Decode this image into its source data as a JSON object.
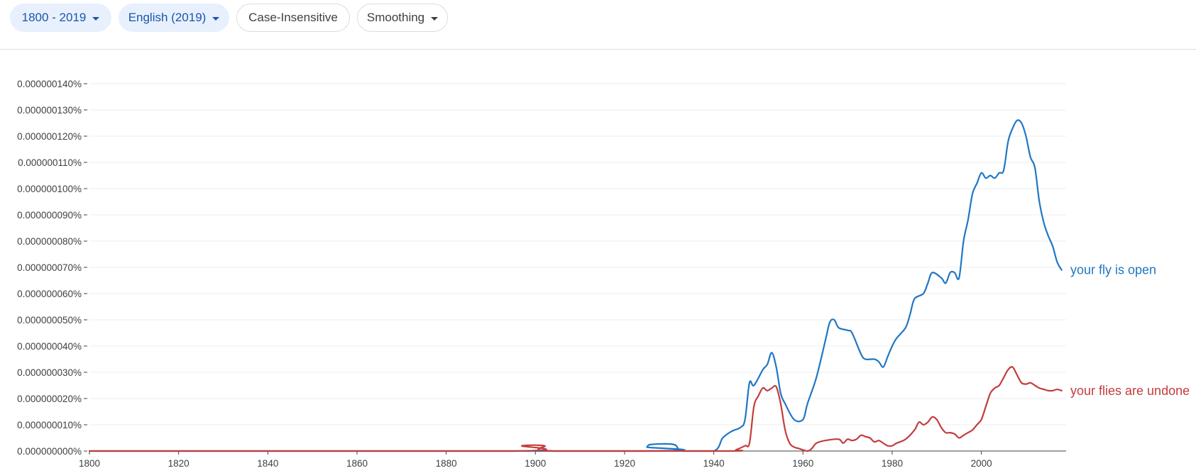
{
  "toolbar": {
    "range_label": "1800 - 2019",
    "corpus_label": "English (2019)",
    "case_label": "Case-Insensitive",
    "smoothing_label": "Smoothing"
  },
  "colors": {
    "chip_fill": "#e8f0fe",
    "chip_text": "#1a56a8",
    "series_blue": "#1f77c4",
    "series_red": "#c43c3c",
    "grid": "#eeeeee",
    "axis": "#3c4043"
  },
  "chart_data": {
    "type": "line",
    "title": "",
    "xlabel": "",
    "ylabel": "",
    "xlim": [
      1800,
      2019
    ],
    "ylim": [
      0,
      1.4e-07
    ],
    "grid": true,
    "legend": "inline-right",
    "x_ticks": [
      "1800",
      "1820",
      "1840",
      "1860",
      "1880",
      "1900",
      "1920",
      "1940",
      "1960",
      "1980",
      "2000"
    ],
    "y_ticks": [
      "0.000000000%",
      "0.000000010%",
      "0.000000020%",
      "0.000000030%",
      "0.000000040%",
      "0.000000050%",
      "0.000000060%",
      "0.000000070%",
      "0.000000080%",
      "0.000000090%",
      "0.000000100%",
      "0.000000110%",
      "0.000000120%",
      "0.000000130%",
      "0.000000140%"
    ],
    "series": [
      {
        "name": "your fly is open",
        "color": "#1f77c4",
        "points": [
          [
            1800,
            0
          ],
          [
            1924,
            0
          ],
          [
            1925,
            1.5e-09
          ],
          [
            1926,
            2.5e-09
          ],
          [
            1931,
            2.5e-09
          ],
          [
            1933,
            0
          ],
          [
            1940,
            0
          ],
          [
            1942,
            5e-09
          ],
          [
            1944,
            7.5e-09
          ],
          [
            1946,
            9e-09
          ],
          [
            1947,
            1.2e-08
          ],
          [
            1948,
            2.6e-08
          ],
          [
            1949,
            2.5e-08
          ],
          [
            1951,
            3.1e-08
          ],
          [
            1952,
            3.3e-08
          ],
          [
            1953,
            3.75e-08
          ],
          [
            1954,
            3.2e-08
          ],
          [
            1955,
            2.2e-08
          ],
          [
            1956,
            1.8e-08
          ],
          [
            1958,
            1.2e-08
          ],
          [
            1960,
            1.2e-08
          ],
          [
            1961,
            1.8e-08
          ],
          [
            1963,
            2.8e-08
          ],
          [
            1965,
            4.2e-08
          ],
          [
            1966,
            4.9e-08
          ],
          [
            1967,
            5e-08
          ],
          [
            1968,
            4.7e-08
          ],
          [
            1970,
            4.6e-08
          ],
          [
            1971,
            4.5e-08
          ],
          [
            1973,
            3.7e-08
          ],
          [
            1974,
            3.5e-08
          ],
          [
            1976,
            3.5e-08
          ],
          [
            1977,
            3.4e-08
          ],
          [
            1978,
            3.2e-08
          ],
          [
            1979,
            3.6e-08
          ],
          [
            1980,
            4e-08
          ],
          [
            1981,
            4.3e-08
          ],
          [
            1983,
            4.7e-08
          ],
          [
            1984,
            5.2e-08
          ],
          [
            1985,
            5.8e-08
          ],
          [
            1987,
            6e-08
          ],
          [
            1988,
            6.4e-08
          ],
          [
            1989,
            6.8e-08
          ],
          [
            1991,
            6.6e-08
          ],
          [
            1992,
            6.4e-08
          ],
          [
            1993,
            6.8e-08
          ],
          [
            1994,
            6.8e-08
          ],
          [
            1995,
            6.6e-08
          ],
          [
            1996,
            8e-08
          ],
          [
            1997,
            8.8e-08
          ],
          [
            1998,
            9.8e-08
          ],
          [
            1999,
            1.02e-07
          ],
          [
            2000,
            1.06e-07
          ],
          [
            2001,
            1.04e-07
          ],
          [
            2002,
            1.05e-07
          ],
          [
            2003,
            1.04e-07
          ],
          [
            2004,
            1.06e-07
          ],
          [
            2005,
            1.07e-07
          ],
          [
            2006,
            1.18e-07
          ],
          [
            2007,
            1.23e-07
          ],
          [
            2008,
            1.26e-07
          ],
          [
            2009,
            1.25e-07
          ],
          [
            2010,
            1.2e-07
          ],
          [
            2011,
            1.12e-07
          ],
          [
            2012,
            1.08e-07
          ],
          [
            2013,
            9.5e-08
          ],
          [
            2014,
            8.7e-08
          ],
          [
            2015,
            8.2e-08
          ],
          [
            2016,
            7.8e-08
          ],
          [
            2017,
            7.2e-08
          ],
          [
            2018,
            6.9e-08
          ]
        ]
      },
      {
        "name": "your flies are undone",
        "color": "#c43c3c",
        "points": [
          [
            1800,
            0
          ],
          [
            1895,
            0
          ],
          [
            1897,
            2e-09
          ],
          [
            1902,
            2e-09
          ],
          [
            1904,
            0
          ],
          [
            1943,
            0
          ],
          [
            1945,
            5e-10
          ],
          [
            1947,
            2e-09
          ],
          [
            1948,
            3e-09
          ],
          [
            1949,
            1.7e-08
          ],
          [
            1950,
            2.1e-08
          ],
          [
            1951,
            2.4e-08
          ],
          [
            1952,
            2.3e-08
          ],
          [
            1953,
            2.4e-08
          ],
          [
            1954,
            2.45e-08
          ],
          [
            1955,
            1.8e-08
          ],
          [
            1956,
            8e-09
          ],
          [
            1957,
            3e-09
          ],
          [
            1958,
            1.5e-09
          ],
          [
            1959,
            1e-09
          ],
          [
            1961,
            0
          ],
          [
            1962,
            1e-09
          ],
          [
            1963,
            3e-09
          ],
          [
            1965,
            4e-09
          ],
          [
            1968,
            4.5e-09
          ],
          [
            1969,
            3e-09
          ],
          [
            1970,
            4.5e-09
          ],
          [
            1971,
            4e-09
          ],
          [
            1972,
            4.5e-09
          ],
          [
            1973,
            6e-09
          ],
          [
            1974,
            5.5e-09
          ],
          [
            1975,
            5e-09
          ],
          [
            1976,
            3.5e-09
          ],
          [
            1977,
            4e-09
          ],
          [
            1978,
            3e-09
          ],
          [
            1979,
            2e-09
          ],
          [
            1980,
            2e-09
          ],
          [
            1981,
            3e-09
          ],
          [
            1983,
            4.5e-09
          ],
          [
            1985,
            8e-09
          ],
          [
            1986,
            1.1e-08
          ],
          [
            1987,
            1e-08
          ],
          [
            1988,
            1.1e-08
          ],
          [
            1989,
            1.3e-08
          ],
          [
            1990,
            1.2e-08
          ],
          [
            1991,
            9e-09
          ],
          [
            1992,
            7e-09
          ],
          [
            1993,
            7e-09
          ],
          [
            1994,
            6.5e-09
          ],
          [
            1995,
            5e-09
          ],
          [
            1996,
            6e-09
          ],
          [
            1997,
            7e-09
          ],
          [
            1998,
            8e-09
          ],
          [
            1999,
            1e-08
          ],
          [
            2000,
            1.2e-08
          ],
          [
            2001,
            1.7e-08
          ],
          [
            2002,
            2.2e-08
          ],
          [
            2003,
            2.4e-08
          ],
          [
            2004,
            2.5e-08
          ],
          [
            2005,
            2.8e-08
          ],
          [
            2006,
            3.1e-08
          ],
          [
            2007,
            3.2e-08
          ],
          [
            2008,
            2.9e-08
          ],
          [
            2009,
            2.6e-08
          ],
          [
            2010,
            2.55e-08
          ],
          [
            2011,
            2.6e-08
          ],
          [
            2012,
            2.5e-08
          ],
          [
            2013,
            2.4e-08
          ],
          [
            2014,
            2.35e-08
          ],
          [
            2015,
            2.3e-08
          ],
          [
            2016,
            2.3e-08
          ],
          [
            2017,
            2.35e-08
          ],
          [
            2018,
            2.3e-08
          ]
        ]
      }
    ]
  }
}
